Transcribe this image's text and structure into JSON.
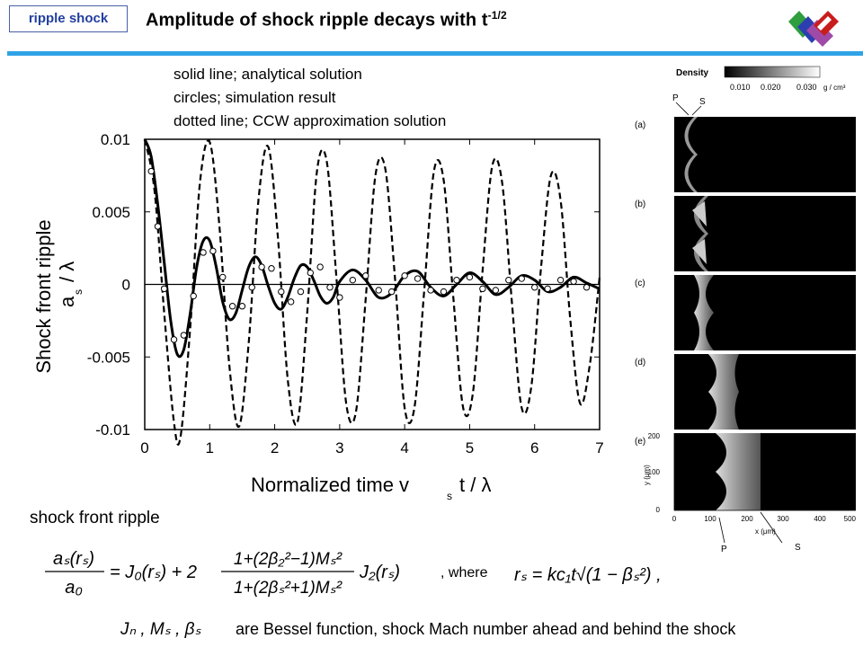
{
  "tag": "ripple shock",
  "title": {
    "main": "Amplitude of shock ripple decays with t",
    "exp": "-1/2"
  },
  "notes": [
    "solid line; analytical solution",
    "circles; simulation result",
    "dotted line; CCW approximation solution"
  ],
  "colors": {
    "rule": "#2fa3e6",
    "tag_border": "#4a5fa8",
    "tag_text": "#223f9e",
    "logo_green": "#2e9e3f",
    "logo_blue": "#2c3fb0",
    "logo_purple": "#a04aa8",
    "logo_red": "#c81d1d"
  },
  "chart_data": {
    "type": "line",
    "xlabel": "Normalized time  v",
    "xlabel_sub": "s",
    "xlabel_tail": "t / λ",
    "ylabel_main": "Shock front ripple",
    "ylabel_var": "a",
    "ylabel_sub": "s",
    "ylabel_tail": " / λ",
    "xlim": [
      0,
      7
    ],
    "ylim": [
      -0.01,
      0.01
    ],
    "x_ticks": [
      "0",
      "1",
      "2",
      "3",
      "4",
      "5",
      "6",
      "7"
    ],
    "y_ticks": [
      "0.01",
      "0.005",
      "0",
      "-0.005",
      "-0.01"
    ],
    "series": [
      {
        "style": "solid",
        "description_key": "analytical solution",
        "x": [
          0,
          0.1,
          0.2,
          0.3,
          0.4,
          0.5,
          0.6,
          0.7,
          0.8,
          0.9,
          1.0,
          1.1,
          1.2,
          1.3,
          1.4,
          1.5,
          1.6,
          1.7,
          1.8,
          1.9,
          2.0,
          2.1,
          2.2,
          2.3,
          2.4,
          2.5,
          2.6,
          2.7,
          2.8,
          2.9,
          3.0,
          3.2,
          3.4,
          3.6,
          3.8,
          4.0,
          4.2,
          4.4,
          4.6,
          4.8,
          5.0,
          5.2,
          5.4,
          5.6,
          5.8,
          6.0,
          6.2,
          6.4,
          6.6,
          6.8,
          7.0
        ],
        "y": [
          0.01,
          0.0088,
          0.0055,
          0.0015,
          -0.0025,
          -0.0048,
          -0.0045,
          -0.002,
          0.0012,
          0.003,
          0.003,
          0.0012,
          -0.0012,
          -0.0024,
          -0.002,
          -0.0004,
          0.0012,
          0.0019,
          0.0013,
          -0.0001,
          -0.0013,
          -0.0017,
          -0.0009,
          0.0004,
          0.0013,
          0.0012,
          0.0003,
          -0.0008,
          -0.0013,
          -0.0009,
          0.0002,
          0.001,
          0.0003,
          -0.0009,
          -0.0006,
          0.0006,
          0.0009,
          -0.0002,
          -0.0008,
          0.0,
          0.0008,
          0.0002,
          -0.0007,
          -0.0002,
          0.0006,
          0.0003,
          -0.0005,
          -0.0002,
          0.0005,
          0.0001,
          -0.0003
        ]
      },
      {
        "style": "dashed",
        "description_key": "CCW approximation solution",
        "x": [
          0,
          0.15,
          0.3,
          0.45,
          0.55,
          0.7,
          0.85,
          1.0,
          1.15,
          1.3,
          1.45,
          1.6,
          1.75,
          1.9,
          2.05,
          2.2,
          2.35,
          2.5,
          2.65,
          2.8,
          2.95,
          3.1,
          3.25,
          3.4,
          3.55,
          3.7,
          3.85,
          4.0,
          4.15,
          4.3,
          4.45,
          4.6,
          4.75,
          4.9,
          5.05,
          5.2,
          5.35,
          5.5,
          5.65,
          5.8,
          5.95,
          6.1,
          6.25,
          6.4,
          6.55,
          6.7,
          6.85,
          7.0
        ],
        "y": [
          0.01,
          0.0065,
          -0.002,
          -0.0095,
          -0.0105,
          -0.003,
          0.007,
          0.0098,
          0.004,
          -0.0055,
          -0.0098,
          -0.004,
          0.0058,
          0.0095,
          0.0032,
          -0.0065,
          -0.0095,
          -0.002,
          0.0078,
          0.0085,
          0.0005,
          -0.0082,
          -0.0088,
          -0.001,
          0.0075,
          0.008,
          0.0005,
          -0.0085,
          -0.0085,
          -0.0005,
          0.0078,
          0.0072,
          -0.001,
          -0.0085,
          -0.0075,
          0.001,
          0.0082,
          0.007,
          -0.0012,
          -0.0085,
          -0.007,
          0.0012,
          0.0075,
          0.0058,
          -0.0025,
          -0.0082,
          -0.0055,
          0.0005
        ]
      },
      {
        "style": "circles",
        "description_key": "simulation result",
        "x": [
          0.1,
          0.2,
          0.3,
          0.45,
          0.6,
          0.75,
          0.9,
          1.05,
          1.2,
          1.35,
          1.5,
          1.65,
          1.8,
          1.95,
          2.1,
          2.25,
          2.4,
          2.55,
          2.7,
          2.85,
          3.0,
          3.2,
          3.4,
          3.6,
          3.8,
          4.0,
          4.2,
          4.4,
          4.6,
          4.8,
          5.0,
          5.2,
          5.4,
          5.6,
          5.8,
          6.0,
          6.2,
          6.4,
          6.6,
          6.8
        ],
        "y": [
          0.0078,
          0.004,
          -0.0003,
          -0.0038,
          -0.0035,
          -0.0008,
          0.0022,
          0.0023,
          0.0005,
          -0.0015,
          -0.0015,
          -0.0002,
          0.0012,
          0.0011,
          -0.0005,
          -0.0012,
          -0.0005,
          0.0008,
          0.0012,
          -0.0002,
          -0.0009,
          0.0003,
          0.0006,
          -0.0004,
          -0.0005,
          0.0006,
          0.0004,
          -0.0004,
          -0.0005,
          0.0003,
          0.0005,
          -0.0003,
          -0.0004,
          0.0003,
          0.0004,
          -0.0002,
          -0.0003,
          0.0003,
          0.0002,
          -0.0002
        ]
      }
    ]
  },
  "sim_panel": {
    "legend_title": "Density",
    "legend_ticks": [
      "0.010",
      "0.020",
      "0.030"
    ],
    "legend_unit": "g / cm³",
    "top_labels": [
      "P",
      "S"
    ],
    "panels": [
      "(a)",
      "(b)",
      "(c)",
      "(d)",
      "(e)"
    ],
    "y_axis_label": "y (μm)",
    "y_ticks": [
      "200",
      "100",
      "0"
    ],
    "x_axis_label": "x (μm)",
    "x_ticks": [
      "0",
      "100",
      "200",
      "300",
      "400",
      "500"
    ],
    "bottom_labels": [
      "P",
      "S"
    ]
  },
  "equation": {
    "heading": "shock front ripple",
    "where": ", where",
    "lhs_num": "aₛ(rₛ)",
    "lhs_den": "a₀",
    "eq1_a": "= J₀(rₛ) + 2",
    "frac_num": "1+(2β₂²−1)Mₛ²",
    "frac_den": "1+(2βₛ²+1)Mₛ²",
    "eq1_b": "J₂(rₛ)",
    "eq2": "rₛ = kc₁t√(1 − βₛ²) ,",
    "symbols": "Jₙ , Mₛ , βₛ",
    "bessel_note": "are Bessel function, shock Mach number ahead and behind the shock"
  }
}
